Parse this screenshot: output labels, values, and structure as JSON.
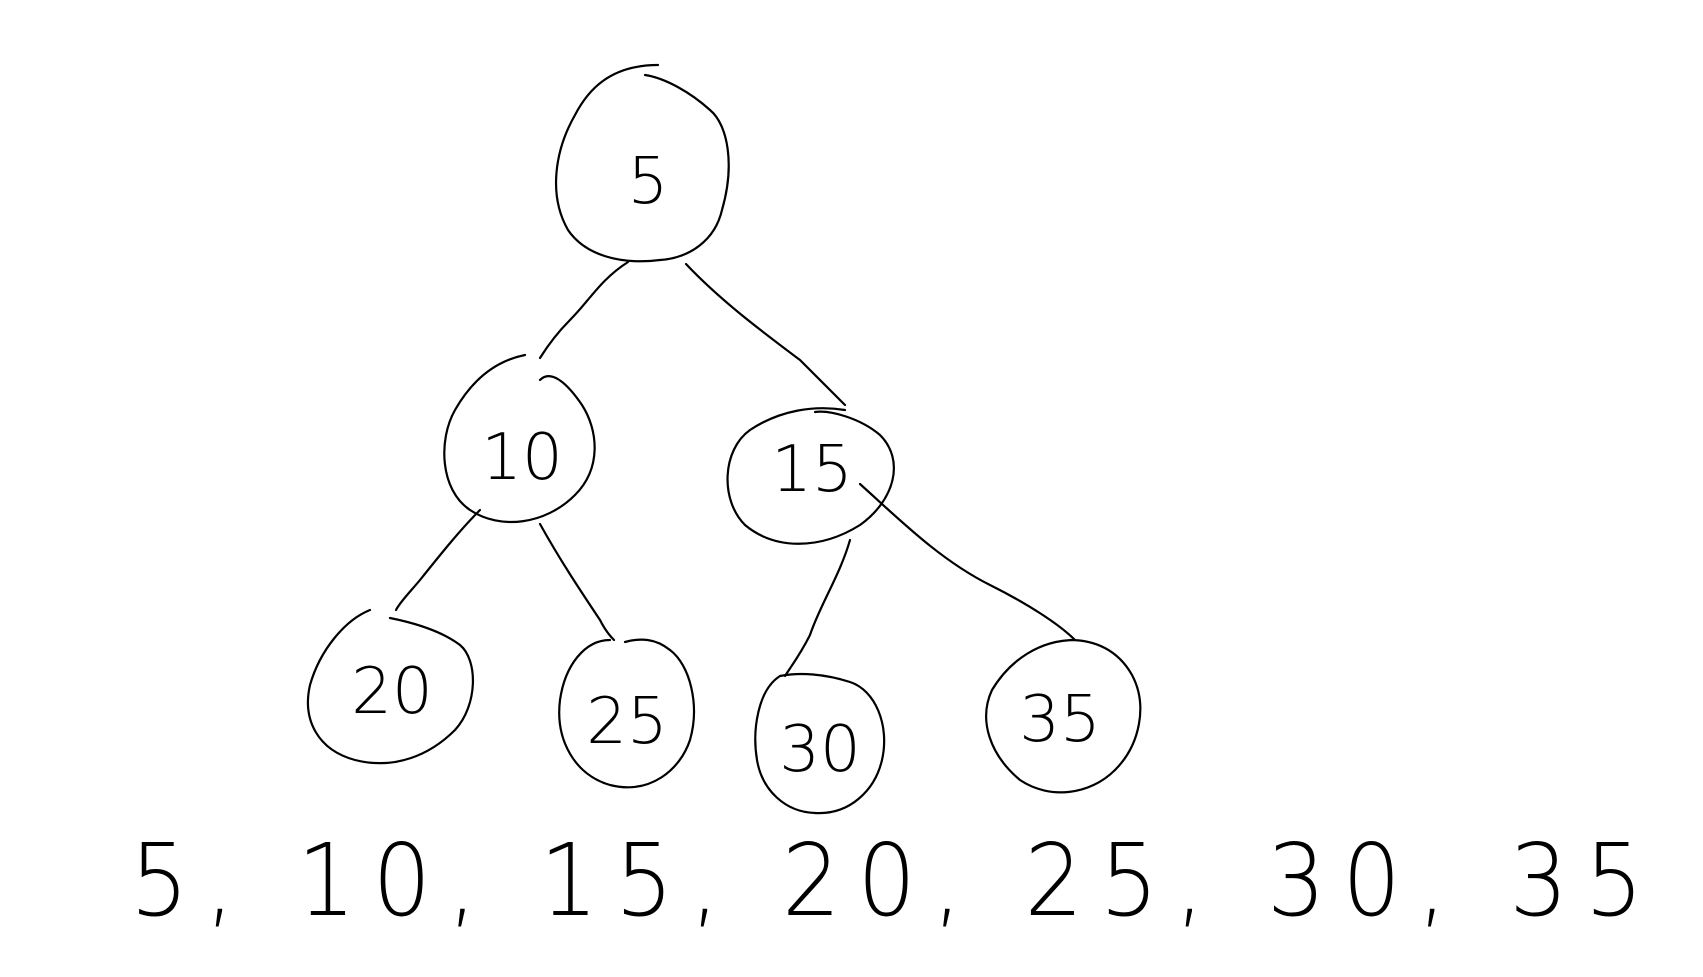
{
  "tree": {
    "root": {
      "value": "5"
    },
    "level1": [
      {
        "value": "10"
      },
      {
        "value": "15"
      }
    ],
    "level2": [
      {
        "value": "20"
      },
      {
        "value": "25"
      },
      {
        "value": "30"
      },
      {
        "value": "35"
      }
    ]
  },
  "sequence": {
    "text": "5, 10, 15, 20, 25, 30, 35"
  }
}
